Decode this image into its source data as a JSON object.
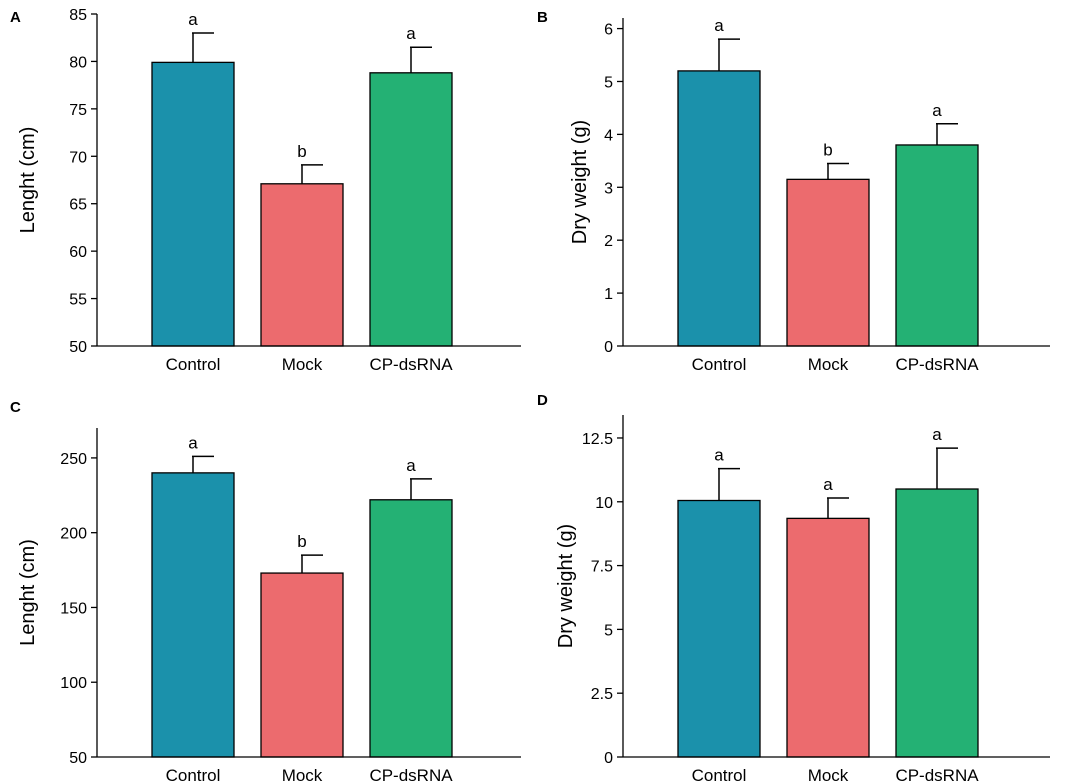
{
  "figure": {
    "colors": {
      "Control": "#1b91ab",
      "Mock": "#ec6b6e",
      "CP-dsRNA": "#24b174",
      "axis": "#000000",
      "background": "#ffffff"
    }
  },
  "chart_data": [
    {
      "panel": "A",
      "type": "bar",
      "title": "",
      "xlabel": "",
      "ylabel": "Lenght (cm)",
      "categories": [
        "Control",
        "Mock",
        "CP-dsRNA"
      ],
      "values": [
        79.9,
        67.1,
        78.8
      ],
      "errors": [
        3.1,
        2.0,
        2.7
      ],
      "significance": [
        "a",
        "b",
        "a"
      ],
      "ylim": [
        50,
        85
      ],
      "yticks": [
        50,
        55,
        60,
        65,
        70,
        75,
        80,
        85
      ],
      "ytick_labels": [
        "50",
        "55",
        "60",
        "65",
        "70",
        "75",
        "80",
        "85"
      ]
    },
    {
      "panel": "B",
      "type": "bar",
      "title": "",
      "xlabel": "",
      "ylabel": "Dry weight (g)",
      "categories": [
        "Control",
        "Mock",
        "CP-dsRNA"
      ],
      "values": [
        5.2,
        3.15,
        3.8
      ],
      "errors": [
        0.6,
        0.3,
        0.4
      ],
      "significance": [
        "a",
        "b",
        "a"
      ],
      "ylim": [
        0,
        6.2
      ],
      "yticks": [
        0,
        1,
        2,
        3,
        4,
        5,
        6
      ],
      "ytick_labels": [
        "0",
        "1",
        "2",
        "3",
        "4",
        "5",
        "6"
      ]
    },
    {
      "panel": "C",
      "type": "bar",
      "title": "",
      "xlabel": "",
      "ylabel": "Lenght (cm)",
      "categories": [
        "Control",
        "Mock",
        "CP-dsRNA"
      ],
      "values": [
        240,
        173,
        222
      ],
      "errors": [
        11,
        12,
        14
      ],
      "significance": [
        "a",
        "b",
        "a"
      ],
      "ylim": [
        50,
        270
      ],
      "yticks": [
        50,
        100,
        150,
        200,
        250
      ],
      "ytick_labels": [
        "50",
        "100",
        "150",
        "200",
        "250"
      ]
    },
    {
      "panel": "D",
      "type": "bar",
      "title": "",
      "xlabel": "",
      "ylabel": "Dry weight (g)",
      "categories": [
        "Control",
        "Mock",
        "CP-dsRNA"
      ],
      "values": [
        10.05,
        9.35,
        10.5
      ],
      "errors": [
        1.25,
        0.8,
        1.6
      ],
      "significance": [
        "a",
        "a",
        "a"
      ],
      "ylim": [
        0,
        13.4
      ],
      "yticks": [
        0,
        2.5,
        5,
        7.5,
        10,
        12.5
      ],
      "ytick_labels": [
        "0",
        "2.5",
        "5",
        "7.5",
        "10",
        "12.5"
      ]
    }
  ]
}
